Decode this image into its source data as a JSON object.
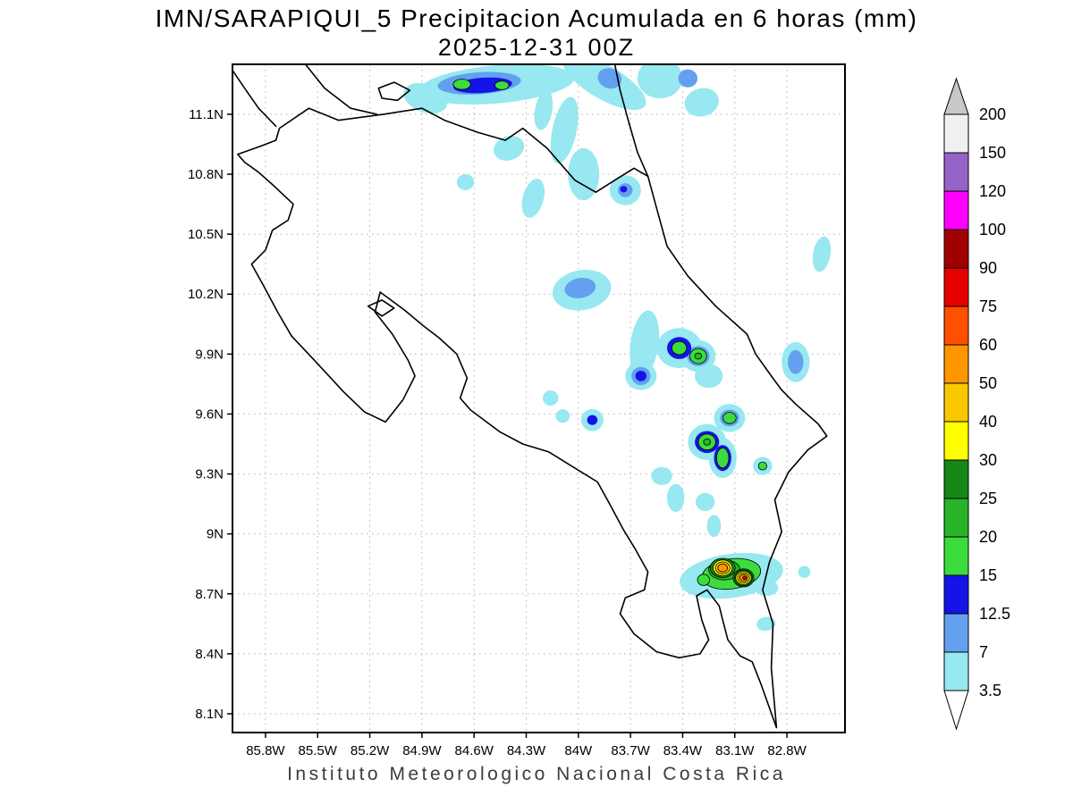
{
  "chart_data": {
    "type": "heatmap",
    "title": "IMN/SARAPIQUI_5 Precipitacion Acumulada en 6 horas (mm)",
    "subtitle": "2025-12-31 00Z",
    "source": "Instituto Meteorologico Nacional Costa Rica",
    "units": "mm",
    "legend_position": "right",
    "grid": "dotted",
    "lon_ticks": [
      "85.8W",
      "85.5W",
      "85.2W",
      "84.9W",
      "84.6W",
      "84.3W",
      "84W",
      "83.7W",
      "83.4W",
      "83.1W",
      "82.8W"
    ],
    "lat_ticks": [
      "8.1N",
      "8.4N",
      "8.7N",
      "9N",
      "9.3N",
      "9.6N",
      "9.9N",
      "10.2N",
      "10.5N",
      "10.8N",
      "11.1N"
    ],
    "extent": {
      "lon_west": 85.99,
      "lon_east": 82.466,
      "lat_south": 8.006,
      "lat_north": 11.35
    },
    "colorbar": {
      "levels": [
        3.5,
        7,
        12.5,
        15,
        20,
        25,
        30,
        40,
        50,
        60,
        75,
        90,
        100,
        120,
        150,
        200
      ],
      "colors": [
        "#ffffff",
        "#97e8f0",
        "#64a0f0",
        "#1414e6",
        "#3cdc3c",
        "#28b428",
        "#148714",
        "#ffff00",
        "#fac800",
        "#ff9600",
        "#ff5000",
        "#e60000",
        "#a00000",
        "#ff00ff",
        "#9664c8",
        "#f0f0f0",
        "#c8c8c8"
      ]
    },
    "blob_format": [
      "lon_w",
      "lat_n",
      "rx_deg",
      "ry_deg",
      "rotation_deg",
      "level_mm"
    ],
    "precip_blobs": [
      [
        84.47,
        11.25,
        0.45,
        0.095,
        -5,
        3.5
      ],
      [
        84.88,
        11.18,
        0.13,
        0.07,
        20,
        3.5
      ],
      [
        84.57,
        11.255,
        0.24,
        0.055,
        -4,
        7
      ],
      [
        84.55,
        11.245,
        0.17,
        0.038,
        -4,
        12.5
      ],
      [
        84.67,
        11.25,
        0.05,
        0.026,
        0,
        15
      ],
      [
        84.44,
        11.245,
        0.04,
        0.022,
        0,
        15
      ],
      [
        83.85,
        11.26,
        0.27,
        0.085,
        30,
        3.5
      ],
      [
        83.82,
        11.28,
        0.07,
        0.05,
        20,
        7
      ],
      [
        83.53,
        11.28,
        0.13,
        0.1,
        0,
        3.5
      ],
      [
        83.37,
        11.28,
        0.055,
        0.045,
        0,
        7
      ],
      [
        83.29,
        11.16,
        0.1,
        0.07,
        -15,
        3.5
      ],
      [
        84.2,
        11.12,
        0.05,
        0.1,
        10,
        3.5
      ],
      [
        84.08,
        11.02,
        0.07,
        0.17,
        12,
        3.5
      ],
      [
        83.97,
        10.8,
        0.09,
        0.13,
        0,
        3.5
      ],
      [
        83.73,
        10.72,
        0.09,
        0.075,
        0,
        3.5
      ],
      [
        83.73,
        10.72,
        0.042,
        0.035,
        0,
        7
      ],
      [
        83.74,
        10.725,
        0.02,
        0.016,
        0,
        12.5
      ],
      [
        84.4,
        10.93,
        0.09,
        0.06,
        -20,
        3.5
      ],
      [
        84.65,
        10.76,
        0.05,
        0.04,
        0,
        3.5
      ],
      [
        84.26,
        10.68,
        0.06,
        0.1,
        15,
        3.5
      ],
      [
        82.6,
        10.4,
        0.05,
        0.09,
        10,
        3.5
      ],
      [
        83.98,
        10.22,
        0.17,
        0.1,
        -10,
        3.5
      ],
      [
        83.99,
        10.23,
        0.09,
        0.05,
        -10,
        7
      ],
      [
        83.62,
        9.95,
        0.08,
        0.17,
        8,
        3.5
      ],
      [
        83.42,
        9.93,
        0.13,
        0.1,
        0,
        3.5
      ],
      [
        83.42,
        9.93,
        0.07,
        0.055,
        0,
        12.5
      ],
      [
        83.42,
        9.93,
        0.042,
        0.033,
        0,
        15
      ],
      [
        83.31,
        9.89,
        0.1,
        0.08,
        0,
        3.5
      ],
      [
        83.31,
        9.89,
        0.065,
        0.05,
        0,
        7
      ],
      [
        83.31,
        9.89,
        0.048,
        0.038,
        0,
        15
      ],
      [
        83.31,
        9.89,
        0.02,
        0.015,
        0,
        20
      ],
      [
        83.64,
        9.79,
        0.09,
        0.07,
        0,
        3.5
      ],
      [
        83.64,
        9.79,
        0.055,
        0.045,
        0,
        7
      ],
      [
        83.64,
        9.79,
        0.032,
        0.026,
        0,
        12.5
      ],
      [
        83.25,
        9.79,
        0.08,
        0.06,
        0,
        3.5
      ],
      [
        82.75,
        9.86,
        0.08,
        0.1,
        0,
        3.5
      ],
      [
        82.75,
        9.86,
        0.045,
        0.06,
        0,
        7
      ],
      [
        84.16,
        9.68,
        0.045,
        0.038,
        0,
        3.5
      ],
      [
        84.09,
        9.59,
        0.04,
        0.034,
        0,
        3.5
      ],
      [
        83.92,
        9.57,
        0.065,
        0.055,
        0,
        3.5
      ],
      [
        83.92,
        9.57,
        0.03,
        0.025,
        0,
        12.5
      ],
      [
        83.13,
        9.58,
        0.09,
        0.07,
        0,
        3.5
      ],
      [
        83.13,
        9.58,
        0.055,
        0.042,
        0,
        7
      ],
      [
        83.13,
        9.58,
        0.038,
        0.028,
        0,
        15
      ],
      [
        83.26,
        9.46,
        0.11,
        0.09,
        0,
        3.5
      ],
      [
        83.26,
        9.46,
        0.07,
        0.055,
        0,
        12.5
      ],
      [
        83.26,
        9.46,
        0.05,
        0.04,
        0,
        15
      ],
      [
        83.26,
        9.46,
        0.02,
        0.016,
        0,
        20
      ],
      [
        83.17,
        9.38,
        0.08,
        0.1,
        0,
        3.5
      ],
      [
        83.17,
        9.38,
        0.05,
        0.065,
        0,
        12.5
      ],
      [
        83.17,
        9.38,
        0.035,
        0.05,
        0,
        15
      ],
      [
        82.94,
        9.34,
        0.055,
        0.045,
        0,
        3.5
      ],
      [
        82.94,
        9.34,
        0.024,
        0.02,
        0,
        15
      ],
      [
        83.52,
        9.29,
        0.06,
        0.045,
        0,
        3.5
      ],
      [
        83.44,
        9.18,
        0.05,
        0.07,
        0,
        3.5
      ],
      [
        83.27,
        9.16,
        0.055,
        0.045,
        0,
        3.5
      ],
      [
        83.22,
        9.04,
        0.04,
        0.055,
        0,
        3.5
      ],
      [
        83.12,
        8.79,
        0.3,
        0.11,
        -8,
        3.5
      ],
      [
        82.92,
        8.73,
        0.07,
        0.04,
        0,
        3.5
      ],
      [
        83.12,
        8.8,
        0.17,
        0.075,
        -8,
        15
      ],
      [
        83.16,
        8.82,
        0.09,
        0.05,
        0,
        20
      ],
      [
        83.05,
        8.78,
        0.06,
        0.045,
        0,
        20
      ],
      [
        83.28,
        8.77,
        0.035,
        0.028,
        0,
        15
      ],
      [
        83.17,
        8.83,
        0.072,
        0.048,
        0,
        25
      ],
      [
        83.05,
        8.78,
        0.052,
        0.04,
        0,
        25
      ],
      [
        83.17,
        8.83,
        0.055,
        0.04,
        0,
        30
      ],
      [
        83.05,
        8.78,
        0.045,
        0.033,
        0,
        30
      ],
      [
        83.17,
        8.83,
        0.042,
        0.03,
        0,
        40
      ],
      [
        83.05,
        8.78,
        0.034,
        0.025,
        0,
        40
      ],
      [
        83.17,
        8.83,
        0.028,
        0.02,
        0,
        50
      ],
      [
        83.05,
        8.78,
        0.022,
        0.016,
        0,
        50
      ],
      [
        83.045,
        8.78,
        0.01,
        0.008,
        0,
        75
      ],
      [
        82.7,
        8.81,
        0.035,
        0.03,
        0,
        3.5
      ],
      [
        82.92,
        8.55,
        0.055,
        0.035,
        -10,
        3.5
      ]
    ],
    "features": [
      {
        "name": "costa-rica-outline",
        "closed": true,
        "points": [
          [
            85.72,
            11.03
          ],
          [
            85.55,
            11.13
          ],
          [
            85.38,
            11.07
          ],
          [
            85.12,
            11.1
          ],
          [
            84.9,
            11.13
          ],
          [
            84.77,
            11.07
          ],
          [
            84.58,
            11.01
          ],
          [
            84.42,
            10.97
          ],
          [
            84.32,
            11.03
          ],
          [
            84.18,
            10.93
          ],
          [
            84.02,
            10.77
          ],
          [
            83.9,
            10.71
          ],
          [
            83.79,
            10.77
          ],
          [
            83.68,
            10.83
          ],
          [
            83.6,
            10.79
          ],
          [
            83.54,
            10.6
          ],
          [
            83.49,
            10.44
          ],
          [
            83.37,
            10.29
          ],
          [
            83.21,
            10.14
          ],
          [
            83.03,
            10.0
          ],
          [
            82.98,
            9.9
          ],
          [
            82.89,
            9.79
          ],
          [
            82.83,
            9.72
          ],
          [
            82.75,
            9.65
          ],
          [
            82.62,
            9.55
          ],
          [
            82.57,
            9.49
          ],
          [
            82.68,
            9.42
          ],
          [
            82.79,
            9.31
          ],
          [
            82.87,
            9.17
          ],
          [
            82.83,
            9.01
          ],
          [
            82.9,
            8.86
          ],
          [
            82.94,
            8.72
          ],
          [
            82.88,
            8.55
          ],
          [
            82.89,
            8.33
          ],
          [
            82.86,
            8.03
          ],
          [
            82.95,
            8.25
          ],
          [
            83.0,
            8.36
          ],
          [
            83.07,
            8.39
          ],
          [
            83.14,
            8.47
          ],
          [
            83.17,
            8.57
          ],
          [
            83.19,
            8.64
          ],
          [
            83.26,
            8.72
          ],
          [
            83.32,
            8.69
          ],
          [
            83.29,
            8.57
          ],
          [
            83.25,
            8.47
          ],
          [
            83.3,
            8.4
          ],
          [
            83.42,
            8.38
          ],
          [
            83.55,
            8.41
          ],
          [
            83.68,
            8.5
          ],
          [
            83.76,
            8.6
          ],
          [
            83.73,
            8.68
          ],
          [
            83.62,
            8.72
          ],
          [
            83.6,
            8.81
          ],
          [
            83.67,
            8.92
          ],
          [
            83.74,
            9.02
          ],
          [
            83.82,
            9.15
          ],
          [
            83.89,
            9.26
          ],
          [
            84.04,
            9.34
          ],
          [
            84.17,
            9.41
          ],
          [
            84.32,
            9.45
          ],
          [
            84.45,
            9.51
          ],
          [
            84.62,
            9.62
          ],
          [
            84.68,
            9.68
          ],
          [
            84.64,
            9.78
          ],
          [
            84.7,
            9.9
          ],
          [
            84.8,
            9.98
          ],
          [
            84.89,
            10.04
          ],
          [
            85.0,
            10.12
          ],
          [
            85.14,
            10.21
          ],
          [
            85.17,
            10.11
          ],
          [
            85.07,
            10.0
          ],
          [
            84.98,
            9.87
          ],
          [
            84.94,
            9.79
          ],
          [
            85.01,
            9.67
          ],
          [
            85.11,
            9.56
          ],
          [
            85.23,
            9.61
          ],
          [
            85.35,
            9.71
          ],
          [
            85.52,
            9.87
          ],
          [
            85.65,
            9.99
          ],
          [
            85.73,
            10.11
          ],
          [
            85.81,
            10.24
          ],
          [
            85.88,
            10.35
          ],
          [
            85.8,
            10.42
          ],
          [
            85.76,
            10.52
          ],
          [
            85.67,
            10.57
          ],
          [
            85.64,
            10.65
          ],
          [
            85.75,
            10.74
          ],
          [
            85.84,
            10.81
          ],
          [
            85.92,
            10.86
          ],
          [
            85.96,
            10.9
          ],
          [
            85.83,
            10.94
          ],
          [
            85.74,
            10.97
          ]
        ]
      },
      {
        "name": "nicaragua-pacific-coast",
        "closed": false,
        "points": [
          [
            85.74,
            11.04
          ],
          [
            85.84,
            11.13
          ],
          [
            85.92,
            11.23
          ],
          [
            85.99,
            11.32
          ]
        ]
      },
      {
        "name": "lake-nicaragua-shore",
        "closed": false,
        "points": [
          [
            85.57,
            11.35
          ],
          [
            85.46,
            11.23
          ],
          [
            85.31,
            11.13
          ],
          [
            85.16,
            11.1
          ]
        ]
      },
      {
        "name": "nicaragua-caribbean-coast",
        "closed": false,
        "points": [
          [
            83.6,
            10.79
          ],
          [
            83.66,
            10.91
          ],
          [
            83.71,
            11.06
          ],
          [
            83.76,
            11.22
          ],
          [
            83.79,
            11.35
          ]
        ]
      },
      {
        "name": "solentiname-islands",
        "closed": true,
        "points": [
          [
            85.15,
            11.23
          ],
          [
            85.06,
            11.26
          ],
          [
            84.97,
            11.22
          ],
          [
            85.04,
            11.17
          ],
          [
            85.13,
            11.18
          ]
        ]
      },
      {
        "name": "chira-island",
        "closed": true,
        "points": [
          [
            85.21,
            10.14
          ],
          [
            85.13,
            10.17
          ],
          [
            85.06,
            10.13
          ],
          [
            85.13,
            10.09
          ]
        ]
      }
    ]
  }
}
